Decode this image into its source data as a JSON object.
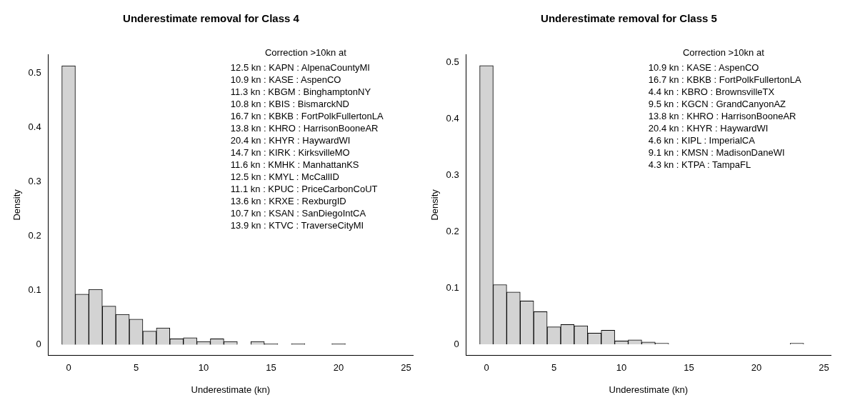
{
  "chart_data": [
    {
      "type": "histogram",
      "title": "Underestimate removal for Class 4",
      "xlabel": "Underestimate (kn)",
      "ylabel": "Density",
      "bins": [
        -0.5,
        0.5,
        1.5,
        2.5,
        3.5,
        4.5,
        5.5,
        6.5,
        7.5,
        8.5,
        9.5,
        10.5,
        11.5,
        12.5,
        13.5,
        14.5,
        15.5,
        16.5,
        17.5,
        18.5,
        19.5,
        20.5,
        21.5,
        22.5,
        23.5,
        24.5
      ],
      "values": [
        0.514,
        0.093,
        0.102,
        0.071,
        0.056,
        0.047,
        0.025,
        0.031,
        0.011,
        0.013,
        0.006,
        0.011,
        0.006,
        0,
        0.006,
        0.002,
        0,
        0.002,
        0,
        0,
        0.002,
        0,
        0,
        0,
        0
      ],
      "color": "#d3d3d3",
      "xlim": [
        -1.5,
        25.5
      ],
      "xticks": [
        0,
        5,
        10,
        15,
        20,
        25
      ],
      "ylim": [
        -0.02,
        0.535
      ],
      "yticks": [
        0,
        0.1,
        0.2,
        0.3,
        0.4,
        0.5
      ],
      "grid": false,
      "legend": false,
      "annotations": [
        "Correction >10kn at",
        "12.5 kn : KAPN : AlpenaCountyMI",
        "10.9 kn : KASE : AspenCO",
        "11.3 kn : KBGM : BinghamptonNY",
        "10.8 kn : KBIS : BismarckND",
        "16.7 kn : KBKB : FortPolkFullertonLA",
        "13.8 kn : KHRO : HarrisonBooneAR",
        "20.4 kn : KHYR : HaywardWI",
        "14.7 kn : KIRK : KirksvilleMO",
        "11.6 kn : KMHK : ManhattanKS",
        "12.5 kn : KMYL : McCallID",
        "11.1 kn : KPUC : PriceCarbonCoUT",
        "13.6 kn : KRXE : RexburgID",
        "10.7 kn : KSAN : SanDiegoIntCA",
        "13.9 kn : KTVC : TraverseCityMI"
      ]
    },
    {
      "type": "histogram",
      "title": "Underestimate removal for Class 5",
      "xlabel": "Underestimate (kn)",
      "ylabel": "Density",
      "bins": [
        -0.5,
        0.5,
        1.5,
        2.5,
        3.5,
        4.5,
        5.5,
        6.5,
        7.5,
        8.5,
        9.5,
        10.5,
        11.5,
        12.5,
        13.5,
        14.5,
        15.5,
        16.5,
        17.5,
        18.5,
        19.5,
        20.5,
        21.5,
        22.5,
        23.5,
        24.5
      ],
      "values": [
        0.495,
        0.106,
        0.093,
        0.077,
        0.058,
        0.031,
        0.035,
        0.033,
        0.02,
        0.025,
        0.006,
        0.008,
        0.004,
        0.002,
        0,
        0,
        0,
        0,
        0,
        0,
        0,
        0,
        0,
        0.002,
        0
      ],
      "color": "#d3d3d3",
      "xlim": [
        -1.5,
        25.5
      ],
      "xticks": [
        0,
        5,
        10,
        15,
        20,
        25
      ],
      "ylim": [
        -0.02,
        0.515
      ],
      "yticks": [
        0,
        0.1,
        0.2,
        0.3,
        0.4,
        0.5
      ],
      "grid": false,
      "legend": false,
      "annotations": [
        "Correction >10kn at",
        "10.9 kn : KASE : AspenCO",
        "16.7 kn : KBKB : FortPolkFullertonLA",
        "4.4 kn : KBRO : BrownsvilleTX",
        "9.5 kn : KGCN : GrandCanyonAZ",
        "13.8 kn : KHRO : HarrisonBooneAR",
        "20.4 kn : KHYR : HaywardWI",
        "4.6 kn : KIPL : ImperialCA",
        "9.1 kn : KMSN : MadisonDaneWI",
        "4.3 kn : KTPA : TampaFL"
      ]
    }
  ]
}
